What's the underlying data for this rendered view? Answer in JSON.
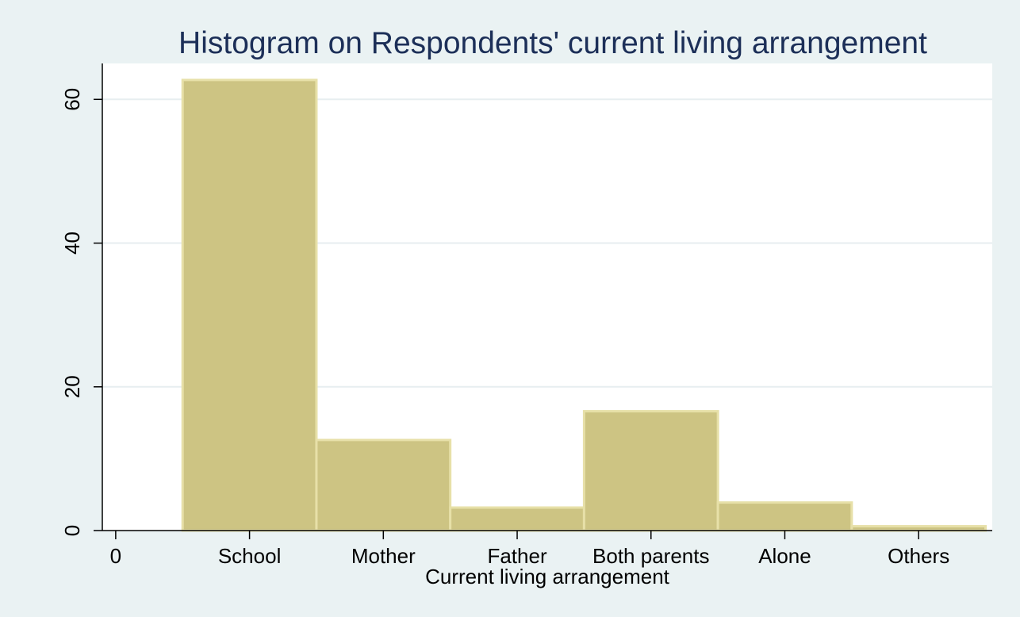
{
  "chart_data": {
    "type": "bar",
    "title": "Histogram on Respondents' current living arrangement",
    "xlabel": "Current living arrangement",
    "ylabel": "",
    "x_ticks": [
      {
        "value": 0,
        "label": "0"
      },
      {
        "value": 1,
        "label": "School"
      },
      {
        "value": 2,
        "label": "Mother"
      },
      {
        "value": 3,
        "label": "Father"
      },
      {
        "value": 4,
        "label": "Both parents"
      },
      {
        "value": 5,
        "label": "Alone"
      },
      {
        "value": 6,
        "label": "Others"
      }
    ],
    "bars": [
      {
        "category": "School",
        "x": 1,
        "value": 62.7
      },
      {
        "category": "Mother",
        "x": 2,
        "value": 12.6
      },
      {
        "category": "Father",
        "x": 3,
        "value": 3.2
      },
      {
        "category": "Both parents",
        "x": 4,
        "value": 16.6
      },
      {
        "category": "Alone",
        "x": 5,
        "value": 3.9
      },
      {
        "category": "Others",
        "x": 6,
        "value": 0.6
      }
    ],
    "xlim": [
      -0.1,
      6.55
    ],
    "ylim": [
      0,
      65
    ],
    "y_ticks": [
      0,
      20,
      40,
      60
    ],
    "grid": true,
    "colors": {
      "bar_fill": "#cdc483",
      "bar_stroke": "#e7e0a8",
      "plot_background": "#ffffff",
      "outer_background": "#eaf2f3",
      "grid": "#e7eef0",
      "title": "#1c2f58",
      "text": "#000000"
    }
  }
}
